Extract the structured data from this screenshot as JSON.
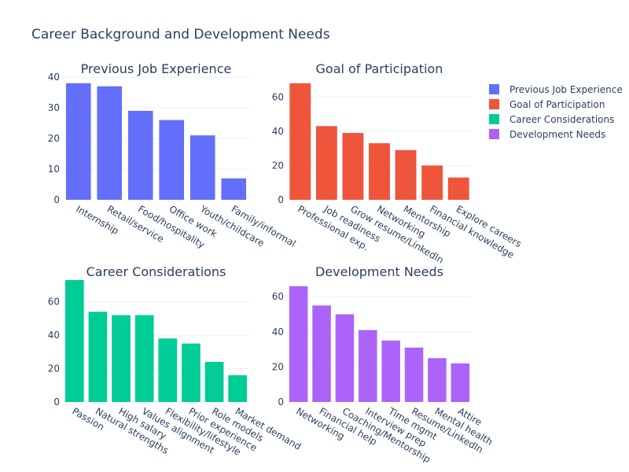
{
  "title": "Career Background and Development Needs",
  "legend": [
    {
      "name": "Previous Job Experience",
      "color": "#636efa"
    },
    {
      "name": "Goal of Participation",
      "color": "#ef553b"
    },
    {
      "name": "Career Considerations",
      "color": "#00cc96"
    },
    {
      "name": "Development Needs",
      "color": "#ab63fa"
    }
  ],
  "chart_data": [
    {
      "type": "bar",
      "title": "Previous Job Experience",
      "color": "#636efa",
      "categories": [
        "Internship",
        "Retail/service",
        "Food/hospitality",
        "Office work",
        "Youth/childcare",
        "Family/informal"
      ],
      "values": [
        38,
        37,
        29,
        26,
        21,
        7
      ],
      "ylim": [
        0,
        40
      ],
      "yticks": [
        0,
        10,
        20,
        30,
        40
      ]
    },
    {
      "type": "bar",
      "title": "Goal of Participation",
      "color": "#ef553b",
      "categories": [
        "Professional exp.",
        "Job readiness",
        "Grow resume/LinkedIn",
        "Networking",
        "Mentorship",
        "Financial knowledge",
        "Explore careers"
      ],
      "values": [
        68,
        43,
        39,
        33,
        29,
        20,
        13
      ],
      "ylim": [
        0,
        71.6
      ],
      "yticks": [
        0,
        20,
        40,
        60
      ]
    },
    {
      "type": "bar",
      "title": "Career Considerations",
      "color": "#00cc96",
      "categories": [
        "Passion",
        "Natural strengths",
        "High salary",
        "Values alignment",
        "Flexibility/lifestyle",
        "Prior experience",
        "Role models",
        "Market demand"
      ],
      "values": [
        73,
        54,
        52,
        52,
        38,
        35,
        24,
        16
      ],
      "ylim": [
        0,
        73
      ],
      "yticks": [
        0,
        20,
        40,
        60
      ]
    },
    {
      "type": "bar",
      "title": "Development Needs",
      "color": "#ab63fa",
      "categories": [
        "Networking",
        "Financial help",
        "Coaching/Mentorship",
        "Interview prep",
        "Time mgmt",
        "Resume/LinkedIn",
        "Mental health",
        "Attire"
      ],
      "values": [
        66,
        55,
        50,
        41,
        35,
        31,
        25,
        22
      ],
      "ylim": [
        0,
        69.5
      ],
      "yticks": [
        0,
        20,
        40,
        60
      ]
    }
  ]
}
